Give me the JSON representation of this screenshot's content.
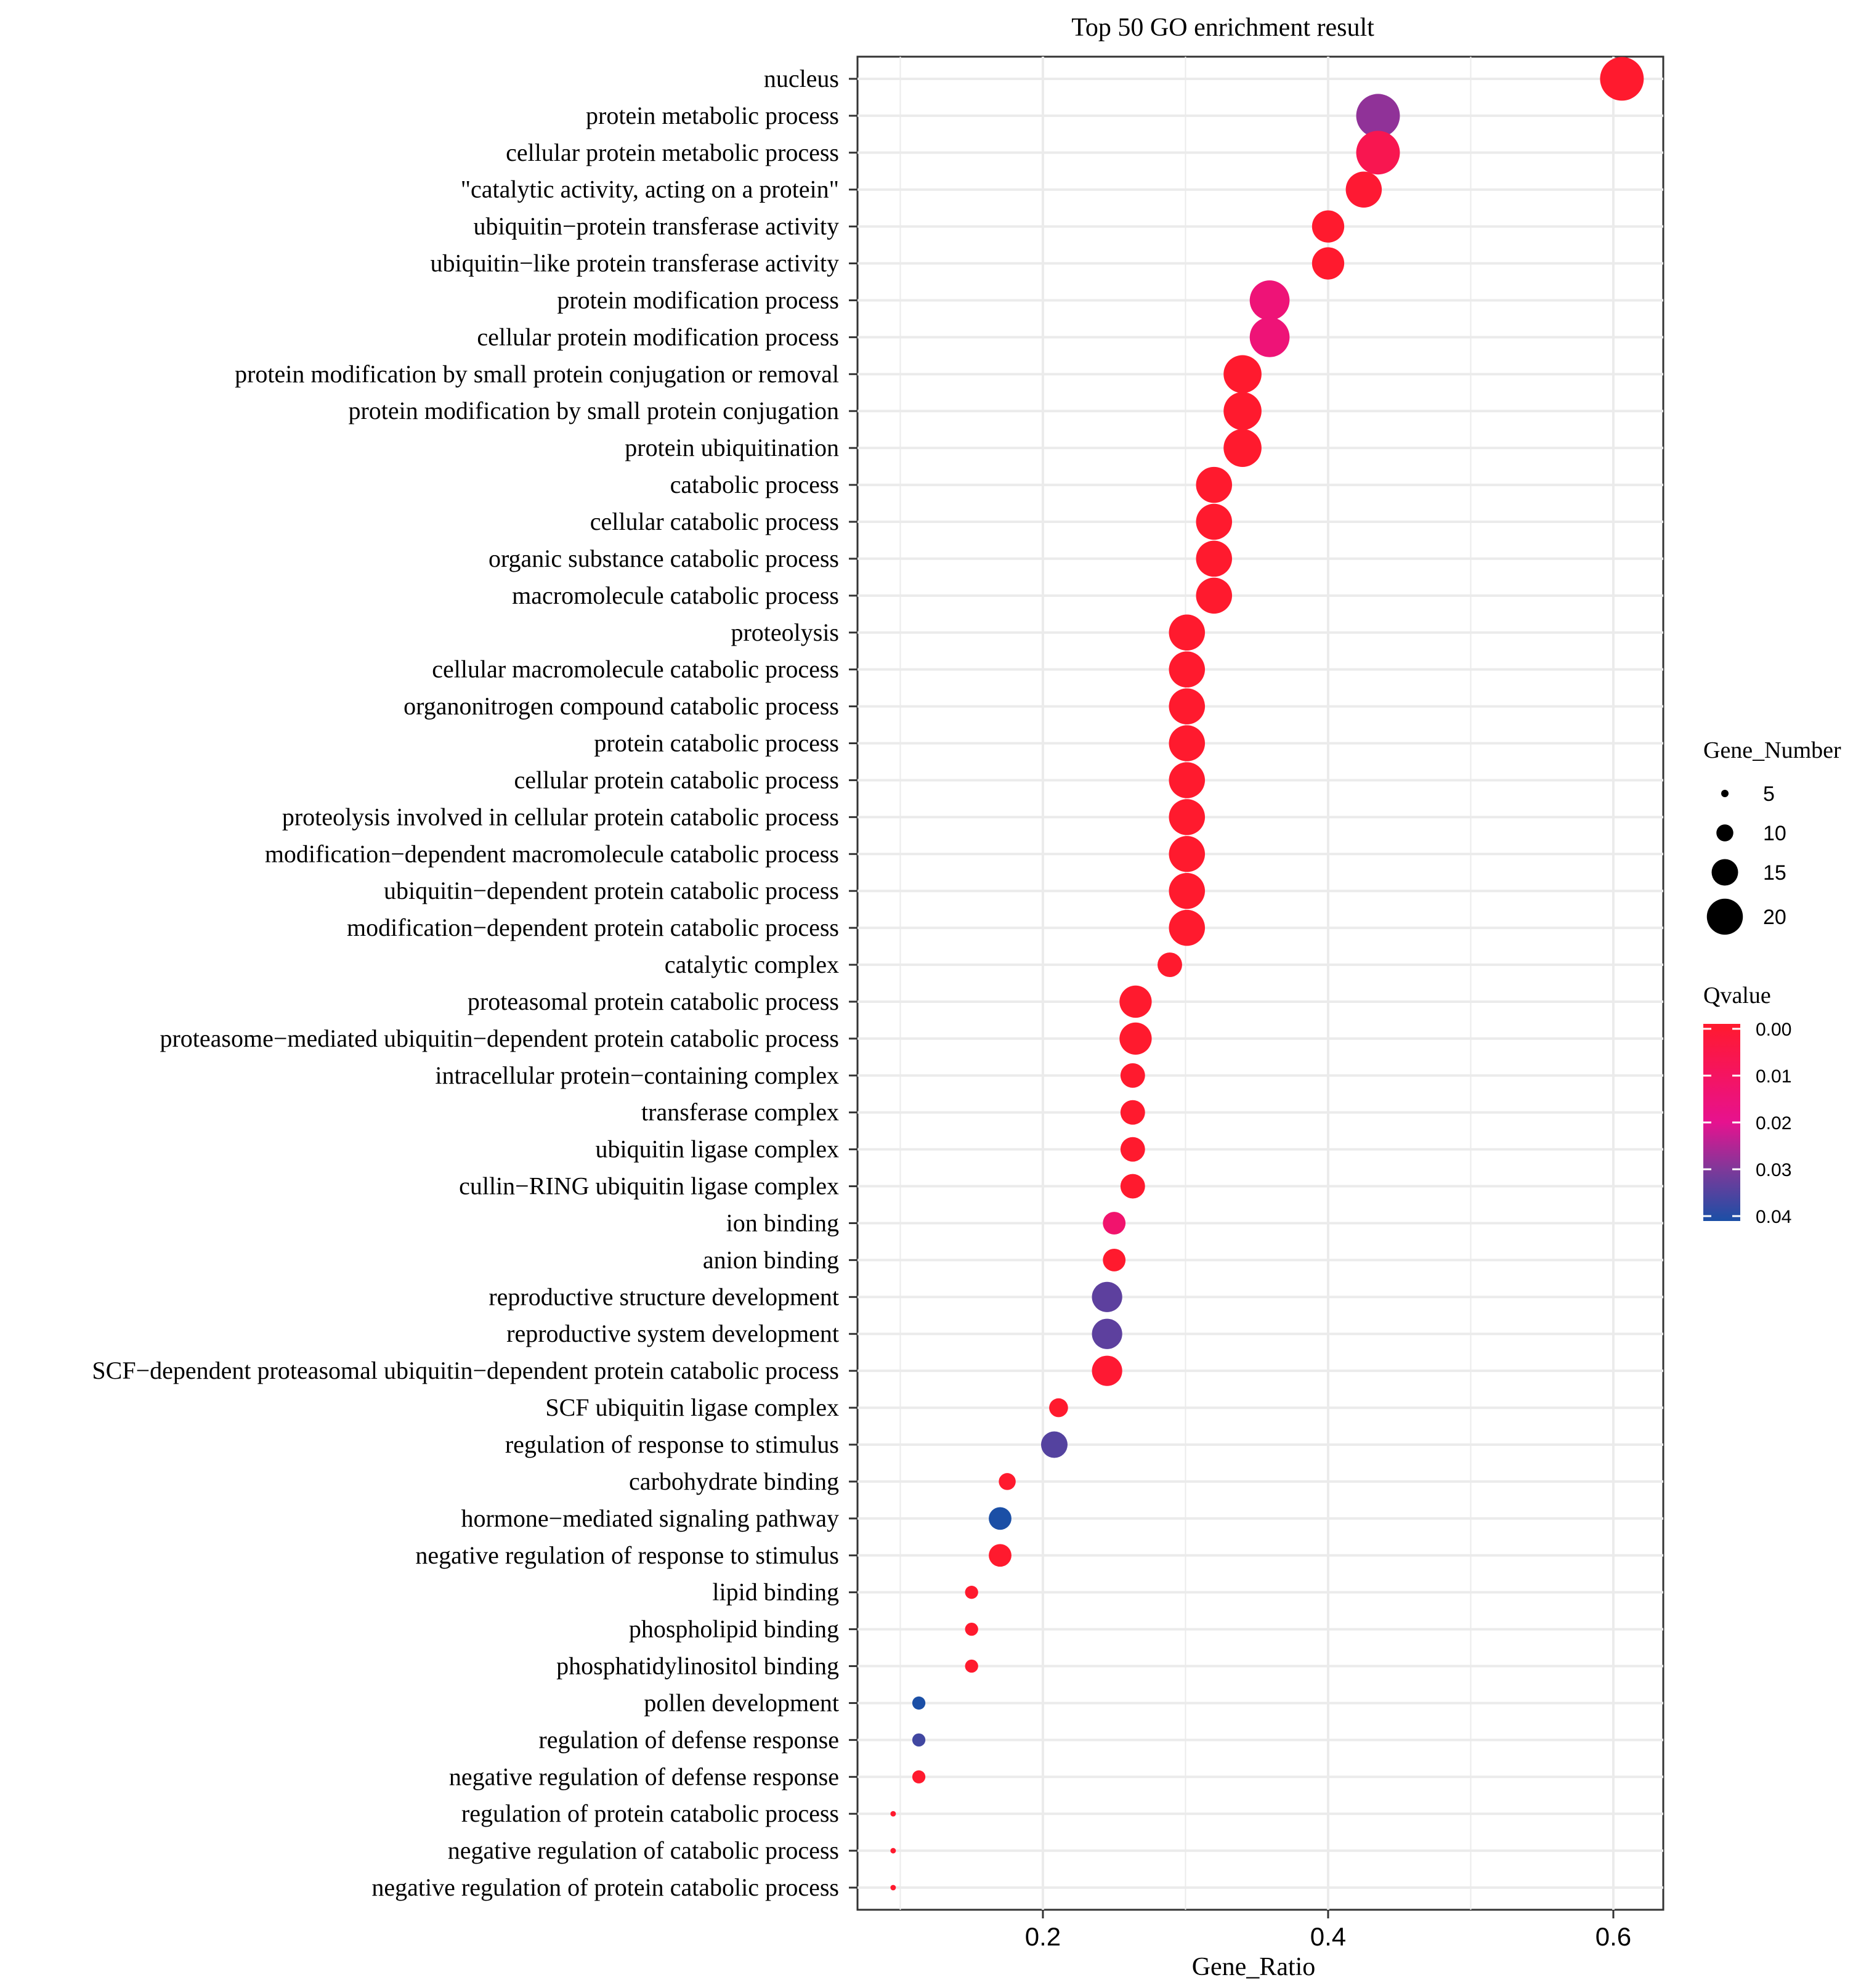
{
  "chart_data": {
    "type": "scatter",
    "title": "Top 50 GO enrichment result",
    "xlabel": "Gene_Ratio",
    "ylabel": "",
    "xlim": [
      0.07,
      0.635
    ],
    "xticks": [
      0.2,
      0.4,
      0.6
    ],
    "xtick_labels": [
      "0.2",
      "0.4",
      "0.6"
    ],
    "grid": true,
    "colors": {
      "low_q": "#ff1a2e",
      "mid_q": "#e6128f",
      "high_q": "#1b4fa6",
      "grid": "#ebebeb",
      "border": "#333333"
    },
    "terms": [
      {
        "name": "nucleus",
        "ratio": 0.606,
        "gene_number": 24,
        "qvalue": 0.0
      },
      {
        "name": "protein metabolic process",
        "ratio": 0.435,
        "gene_number": 24,
        "qvalue": 0.028
      },
      {
        "name": "cellular protein metabolic process",
        "ratio": 0.435,
        "gene_number": 24,
        "qvalue": 0.007
      },
      {
        "name": "\"catalytic activity, acting on a protein\"",
        "ratio": 0.425,
        "gene_number": 20,
        "qvalue": 0.001
      },
      {
        "name": "ubiquitin−protein transferase activity",
        "ratio": 0.4,
        "gene_number": 18,
        "qvalue": 0.0
      },
      {
        "name": "ubiquitin−like protein transferase activity",
        "ratio": 0.4,
        "gene_number": 18,
        "qvalue": 0.0
      },
      {
        "name": "protein modification process",
        "ratio": 0.359,
        "gene_number": 22,
        "qvalue": 0.015
      },
      {
        "name": "cellular protein modification process",
        "ratio": 0.359,
        "gene_number": 22,
        "qvalue": 0.015
      },
      {
        "name": "protein modification by small protein conjugation or removal",
        "ratio": 0.34,
        "gene_number": 21,
        "qvalue": 0.0
      },
      {
        "name": "protein modification by small protein conjugation",
        "ratio": 0.34,
        "gene_number": 21,
        "qvalue": 0.0
      },
      {
        "name": "protein ubiquitination",
        "ratio": 0.34,
        "gene_number": 21,
        "qvalue": 0.0
      },
      {
        "name": "catabolic process",
        "ratio": 0.32,
        "gene_number": 20,
        "qvalue": 0.0
      },
      {
        "name": "cellular catabolic process",
        "ratio": 0.32,
        "gene_number": 20,
        "qvalue": 0.0
      },
      {
        "name": "organic substance catabolic process",
        "ratio": 0.32,
        "gene_number": 20,
        "qvalue": 0.0
      },
      {
        "name": "macromolecule catabolic process",
        "ratio": 0.32,
        "gene_number": 20,
        "qvalue": 0.0
      },
      {
        "name": "proteolysis",
        "ratio": 0.301,
        "gene_number": 20,
        "qvalue": 0.0
      },
      {
        "name": "cellular macromolecule catabolic process",
        "ratio": 0.301,
        "gene_number": 20,
        "qvalue": 0.0
      },
      {
        "name": "organonitrogen compound catabolic process",
        "ratio": 0.301,
        "gene_number": 20,
        "qvalue": 0.0
      },
      {
        "name": "protein catabolic process",
        "ratio": 0.301,
        "gene_number": 20,
        "qvalue": 0.0
      },
      {
        "name": "cellular protein catabolic process",
        "ratio": 0.301,
        "gene_number": 20,
        "qvalue": 0.0
      },
      {
        "name": "proteolysis involved in cellular protein catabolic process",
        "ratio": 0.301,
        "gene_number": 20,
        "qvalue": 0.0
      },
      {
        "name": "modification−dependent macromolecule catabolic process",
        "ratio": 0.301,
        "gene_number": 20,
        "qvalue": 0.0
      },
      {
        "name": "ubiquitin−dependent protein catabolic process",
        "ratio": 0.301,
        "gene_number": 20,
        "qvalue": 0.0
      },
      {
        "name": "modification−dependent protein catabolic process",
        "ratio": 0.301,
        "gene_number": 20,
        "qvalue": 0.0
      },
      {
        "name": "catalytic complex",
        "ratio": 0.289,
        "gene_number": 14,
        "qvalue": 0.0
      },
      {
        "name": "proteasomal protein catabolic process",
        "ratio": 0.265,
        "gene_number": 18,
        "qvalue": 0.0
      },
      {
        "name": "proteasome−mediated ubiquitin−dependent protein catabolic process",
        "ratio": 0.265,
        "gene_number": 18,
        "qvalue": 0.0
      },
      {
        "name": "intracellular protein−containing complex",
        "ratio": 0.263,
        "gene_number": 14,
        "qvalue": 0.0
      },
      {
        "name": "transferase complex",
        "ratio": 0.263,
        "gene_number": 14,
        "qvalue": 0.0
      },
      {
        "name": "ubiquitin ligase complex",
        "ratio": 0.263,
        "gene_number": 14,
        "qvalue": 0.0
      },
      {
        "name": "cullin−RING ubiquitin ligase complex",
        "ratio": 0.263,
        "gene_number": 14,
        "qvalue": 0.0
      },
      {
        "name": "ion binding",
        "ratio": 0.25,
        "gene_number": 13,
        "qvalue": 0.013
      },
      {
        "name": "anion binding",
        "ratio": 0.25,
        "gene_number": 13,
        "qvalue": 0.0
      },
      {
        "name": "reproductive structure development",
        "ratio": 0.245,
        "gene_number": 17,
        "qvalue": 0.033
      },
      {
        "name": "reproductive system development",
        "ratio": 0.245,
        "gene_number": 17,
        "qvalue": 0.033
      },
      {
        "name": "SCF−dependent proteasomal ubiquitin−dependent protein catabolic process",
        "ratio": 0.245,
        "gene_number": 17,
        "qvalue": 0.001
      },
      {
        "name": "SCF ubiquitin ligase complex",
        "ratio": 0.211,
        "gene_number": 11,
        "qvalue": 0.0
      },
      {
        "name": "regulation of response to stimulus",
        "ratio": 0.208,
        "gene_number": 15,
        "qvalue": 0.034
      },
      {
        "name": "carbohydrate binding",
        "ratio": 0.175,
        "gene_number": 10,
        "qvalue": 0.0
      },
      {
        "name": "hormone−mediated signaling pathway",
        "ratio": 0.17,
        "gene_number": 13,
        "qvalue": 0.042
      },
      {
        "name": "negative regulation of response to stimulus",
        "ratio": 0.17,
        "gene_number": 13,
        "qvalue": 0.0
      },
      {
        "name": "lipid binding",
        "ratio": 0.15,
        "gene_number": 8,
        "qvalue": 0.0
      },
      {
        "name": "phospholipid binding",
        "ratio": 0.15,
        "gene_number": 8,
        "qvalue": 0.0
      },
      {
        "name": "phosphatidylinositol binding",
        "ratio": 0.15,
        "gene_number": 8,
        "qvalue": 0.0
      },
      {
        "name": "pollen development",
        "ratio": 0.113,
        "gene_number": 8,
        "qvalue": 0.043
      },
      {
        "name": "regulation of defense response",
        "ratio": 0.113,
        "gene_number": 8,
        "qvalue": 0.036
      },
      {
        "name": "negative regulation of defense response",
        "ratio": 0.113,
        "gene_number": 8,
        "qvalue": 0.0
      },
      {
        "name": "regulation of protein catabolic process",
        "ratio": 0.095,
        "gene_number": 4,
        "qvalue": 0.0
      },
      {
        "name": "negative regulation of catabolic process",
        "ratio": 0.095,
        "gene_number": 4,
        "qvalue": 0.0
      },
      {
        "name": "negative regulation of protein catabolic process",
        "ratio": 0.095,
        "gene_number": 4,
        "qvalue": 0.0
      }
    ],
    "legend": {
      "size": {
        "title": "Gene_Number",
        "entries": [
          {
            "label": "5",
            "value": 5
          },
          {
            "label": "10",
            "value": 10
          },
          {
            "label": "15",
            "value": 15
          },
          {
            "label": "20",
            "value": 20
          }
        ]
      },
      "color": {
        "title": "Qvalue",
        "range": [
          0.0,
          0.04
        ],
        "tick_labels": [
          "0.00",
          "0.01",
          "0.02",
          "0.03",
          "0.04"
        ],
        "ticks": [
          0.0,
          0.01,
          0.02,
          0.03,
          0.04
        ]
      }
    }
  }
}
